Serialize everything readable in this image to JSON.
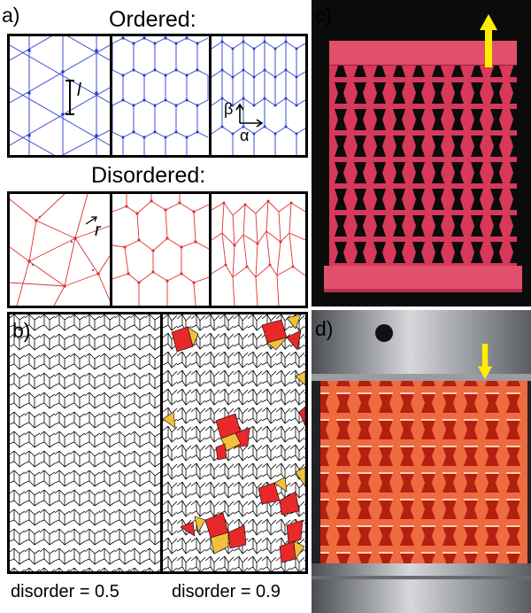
{
  "panels": {
    "a": {
      "label": "a)",
      "ordered_heading": "Ordered:",
      "disordered_heading": "Disordered:",
      "length_label": "l",
      "radius_label": "r",
      "axis_beta": "β",
      "axis_alpha": "α",
      "ordered_color": "#2a3ccf",
      "disordered_color": "#e03030"
    },
    "b": {
      "label": "b)",
      "captions": [
        "disorder = 0.5",
        "disorder = 0.9"
      ],
      "highlight_red": "#e8282a",
      "highlight_yellow": "#f2c13c"
    },
    "c": {
      "label": "c)",
      "arrow": "up",
      "arrow_color": "#ffee00"
    },
    "d": {
      "label": "d)",
      "arrow": "down",
      "arrow_color": "#ffee00"
    }
  }
}
